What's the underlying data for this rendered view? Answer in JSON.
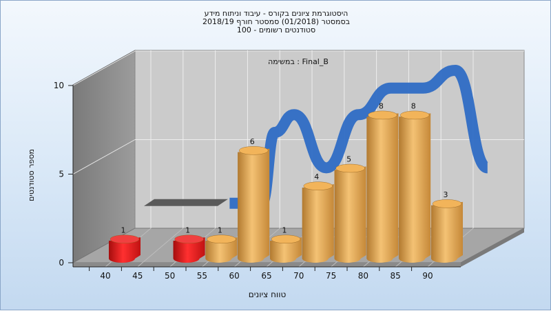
{
  "chart_title": {
    "line1": "היסטוגרמת ציונים בקורס - עיבוד וניתוח מידע",
    "line2": "בסמסטר  (01/2018)  סמסטר חורף 2018/19",
    "line3": "סטודנטים רשומים - 100"
  },
  "chart_data": {
    "type": "bar",
    "title": "היסטוגרמת ציונים בקורס - עיבוד וניתוח מידע",
    "subtitle": "במשימה : Final_B",
    "xlabel": "טווח ציונים",
    "ylabel": "מספר סטודנטים",
    "ylim": [
      0,
      10
    ],
    "y_ticks": [
      "0",
      "5",
      "10"
    ],
    "x_ticks": [
      "40",
      "45",
      "50",
      "55",
      "60",
      "65",
      "70",
      "75",
      "80",
      "85",
      "90"
    ],
    "categories": [
      "40",
      "50",
      "55",
      "60",
      "65",
      "70",
      "75",
      "80",
      "85",
      "90"
    ],
    "values": [
      1,
      1,
      1,
      6,
      1,
      4,
      5,
      8,
      8,
      3
    ],
    "bar_colors": [
      "red",
      "red",
      "orange",
      "orange",
      "orange",
      "orange",
      "orange",
      "orange",
      "orange",
      "orange"
    ],
    "distribution_curve": {
      "x": [
        50,
        55,
        60,
        62,
        65,
        70,
        75,
        80,
        85,
        90,
        95
      ],
      "y": [
        2.5,
        2.5,
        2.5,
        6.5,
        7.5,
        4.5,
        7.5,
        9,
        9,
        10,
        4.5
      ]
    },
    "grid": true,
    "legend": "none",
    "colors": {
      "fail_bar": "#d81818",
      "pass_bar": "#e0a24a",
      "curve": "#2e6bc4",
      "back_wall": "#c8c8c8",
      "side_wall": "#8c8c8c",
      "floor": "#a8a8a8"
    }
  }
}
